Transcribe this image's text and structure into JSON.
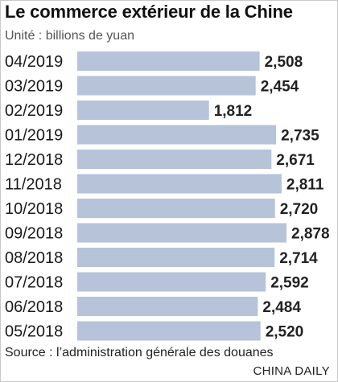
{
  "title": "Le commerce extérieur de la Chine",
  "unit": "Unité : billions de yuan",
  "source": "Source : l’administration générale des douanes",
  "brand": "CHINA DAILY",
  "colors": {
    "bar": "#b6c3d8",
    "text": "#222222"
  },
  "chart_data": {
    "type": "bar",
    "orientation": "horizontal",
    "categories": [
      "04/2019",
      "03/2019",
      "02/2019",
      "01/2019",
      "12/2018",
      "11/2018",
      "10/2018",
      "09/2018",
      "08/2018",
      "07/2018",
      "06/2018",
      "05/2018"
    ],
    "values": [
      2.508,
      2.454,
      1.812,
      2.735,
      2.671,
      2.811,
      2.72,
      2.878,
      2.714,
      2.592,
      2.484,
      2.52
    ],
    "value_labels": [
      "2,508",
      "2,454",
      "1,812",
      "2,735",
      "2,671",
      "2,811",
      "2,720",
      "2,878",
      "2,714",
      "2,592",
      "2,484",
      "2,520"
    ],
    "title": "Le commerce extérieur de la Chine",
    "xlim": [
      0,
      2.878
    ],
    "grid": false,
    "legend": "none"
  }
}
